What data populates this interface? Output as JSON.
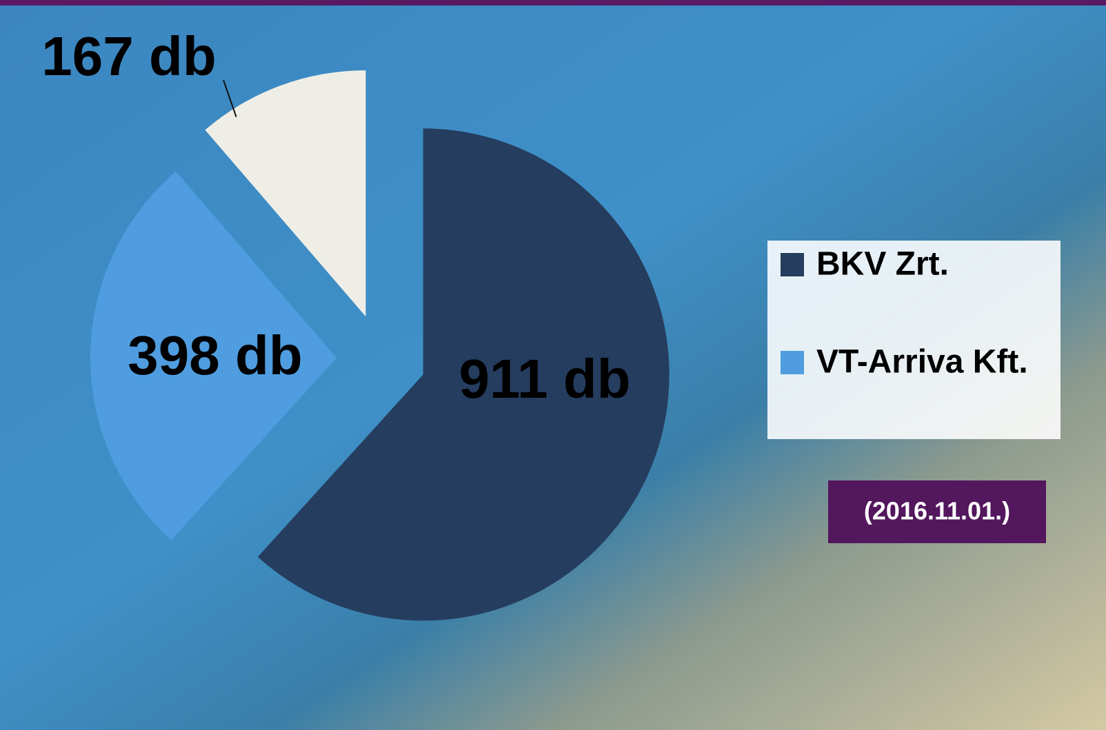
{
  "chart_data": {
    "type": "pie",
    "categories": [
      "BKV Zrt.",
      "VT-Arriva Kft.",
      null
    ],
    "values": [
      911,
      398,
      167
    ],
    "value_labels": [
      "911 db",
      "398 db",
      "167 db"
    ],
    "colors": [
      "#253d5e",
      "#4f9de0",
      "#efeee6"
    ],
    "annotation": "(2016.11.01.)",
    "legend": "right"
  }
}
